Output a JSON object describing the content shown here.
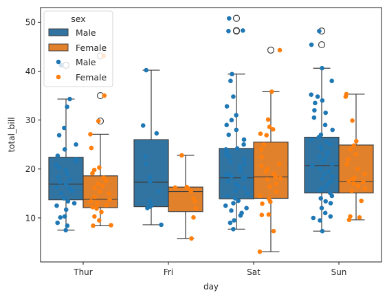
{
  "chart_data": {
    "type": "box+strip",
    "xlabel": "day",
    "ylabel": "total_bill",
    "categories": [
      "Thur",
      "Fri",
      "Sat",
      "Sun"
    ],
    "ylim": [
      1,
      53
    ],
    "yticks": [
      10,
      20,
      30,
      40,
      50
    ],
    "grid": false,
    "legend": {
      "title": "sex",
      "placement": "top-left",
      "entries": [
        {
          "label": "Male",
          "kind": "box"
        },
        {
          "label": "Female",
          "kind": "box"
        },
        {
          "label": "Male",
          "kind": "point"
        },
        {
          "label": "Female",
          "kind": "point"
        }
      ]
    },
    "colors": {
      "Male": "#1f77b4",
      "Female": "#ff7f0e",
      "MaleBox": "#3274a1",
      "FemaleBox": "#e1812c",
      "line": "#3d3d3d"
    },
    "boxes": [
      {
        "day": "Thur",
        "sex": "Male",
        "whisker_low": 7.5,
        "q1": 13.7,
        "median": 16.9,
        "q3": 22.4,
        "whisker_high": 34.3,
        "outliers": [
          41.2
        ]
      },
      {
        "day": "Thur",
        "sex": "Female",
        "whisker_low": 8.4,
        "q1": 12.1,
        "median": 13.8,
        "q3": 18.6,
        "whisker_high": 27.1,
        "outliers": [
          29.8,
          35.0,
          43.1
        ]
      },
      {
        "day": "Fri",
        "sex": "Male",
        "whisker_low": 8.6,
        "q1": 12.3,
        "median": 17.3,
        "q3": 26.0,
        "whisker_high": 40.2,
        "outliers": []
      },
      {
        "day": "Fri",
        "sex": "Female",
        "whisker_low": 5.8,
        "q1": 11.3,
        "median": 15.4,
        "q3": 16.3,
        "whisker_high": 22.8,
        "outliers": []
      },
      {
        "day": "Sat",
        "sex": "Male",
        "whisker_low": 7.7,
        "q1": 13.9,
        "median": 18.2,
        "q3": 24.2,
        "whisker_high": 39.4,
        "outliers": [
          48.3,
          48.2,
          50.8
        ]
      },
      {
        "day": "Sat",
        "sex": "Female",
        "whisker_low": 3.1,
        "q1": 14.0,
        "median": 18.4,
        "q3": 25.5,
        "whisker_high": 35.8,
        "outliers": [
          44.3
        ]
      },
      {
        "day": "Sun",
        "sex": "Male",
        "whisker_low": 7.3,
        "q1": 15.1,
        "median": 20.7,
        "q3": 26.5,
        "whisker_high": 40.6,
        "outliers": [
          45.4,
          48.2
        ]
      },
      {
        "day": "Sun",
        "sex": "Female",
        "whisker_low": 9.6,
        "q1": 15.1,
        "median": 17.4,
        "q3": 24.9,
        "whisker_high": 35.3,
        "outliers": []
      }
    ],
    "points": {
      "Thur": {
        "Male": [
          7.5,
          8.4,
          9.0,
          10.1,
          10.3,
          11.7,
          12.5,
          13.0,
          13.4,
          14.0,
          15.0,
          15.5,
          16.0,
          16.3,
          16.9,
          17.3,
          17.8,
          18.3,
          19.0,
          19.8,
          20.3,
          20.9,
          21.5,
          22.0,
          22.7,
          24.0,
          25.0,
          26.9,
          28.4,
          32.7,
          34.3,
          41.2
        ],
        "Female": [
          8.4,
          8.5,
          9.5,
          10.3,
          11.2,
          11.9,
          12.2,
          12.6,
          12.9,
          13.0,
          13.4,
          13.7,
          14.3,
          15.0,
          15.4,
          16.2,
          16.5,
          17.0,
          17.6,
          18.2,
          19.1,
          19.8,
          20.3,
          24.3,
          27.1,
          29.8,
          35.0,
          43.1
        ]
      },
      "Fri": {
        "Male": [
          8.6,
          12.0,
          12.3,
          12.5,
          13.4,
          15.4,
          17.3,
          18.3,
          21.0,
          22.5,
          27.3,
          28.9,
          40.2
        ],
        "Female": [
          5.8,
          10.1,
          12.0,
          13.4,
          14.0,
          15.4,
          15.9,
          16.3,
          16.2,
          22.8
        ]
      },
      "Sat": {
        "Male": [
          7.7,
          9.0,
          9.5,
          10.5,
          11.0,
          11.5,
          12.0,
          12.5,
          13.0,
          13.5,
          14.0,
          14.5,
          15.0,
          15.5,
          16.0,
          16.5,
          17.0,
          17.5,
          18.0,
          18.3,
          18.5,
          18.7,
          19.0,
          19.5,
          20.0,
          20.5,
          21.0,
          21.5,
          22.0,
          22.5,
          23.0,
          23.5,
          24.0,
          24.2,
          25.0,
          26.0,
          27.0,
          28.0,
          29.0,
          30.0,
          31.0,
          32.8,
          34.8,
          38.0,
          39.4,
          48.3,
          48.2,
          50.8
        ],
        "Female": [
          3.1,
          7.3,
          10.6,
          10.7,
          12.9,
          13.3,
          13.9,
          14.5,
          15.4,
          16.4,
          17.0,
          17.9,
          18.1,
          18.4,
          19.0,
          19.5,
          20.0,
          20.6,
          21.0,
          22.5,
          24.0,
          25.0,
          26.9,
          27.2,
          28.1,
          28.6,
          30.1,
          35.8,
          44.3
        ]
      },
      "Sun": {
        "Male": [
          7.3,
          9.5,
          10.0,
          10.3,
          11.0,
          12.0,
          13.0,
          13.4,
          14.0,
          14.5,
          15.1,
          15.6,
          16.0,
          16.5,
          17.0,
          17.5,
          18.0,
          18.5,
          19.0,
          19.5,
          20.0,
          20.7,
          21.0,
          21.5,
          22.0,
          22.5,
          23.0,
          23.5,
          24.0,
          24.5,
          25.0,
          25.5,
          26.0,
          26.5,
          27.0,
          28.0,
          29.0,
          30.5,
          31.5,
          32.0,
          33.5,
          34.0,
          34.8,
          35.2,
          38.0,
          40.6,
          45.4,
          48.2
        ],
        "Female": [
          9.6,
          10.1,
          10.3,
          13.5,
          15.5,
          16.0,
          16.5,
          17.0,
          17.3,
          17.5,
          17.9,
          18.2,
          19.0,
          20.0,
          21.0,
          22.0,
          23.0,
          24.0,
          24.8,
          25.7,
          29.9,
          34.8,
          35.3
        ]
      }
    }
  }
}
